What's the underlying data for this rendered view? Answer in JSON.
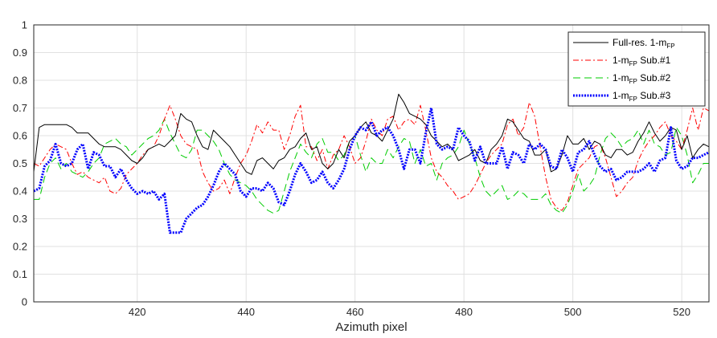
{
  "chart_data": {
    "type": "line",
    "title": "",
    "xlabel": "Azimuth pixel",
    "ylabel": "",
    "xlim": [
      401,
      525
    ],
    "ylim": [
      0,
      1
    ],
    "xticks": [
      420,
      440,
      460,
      480,
      500,
      520
    ],
    "yticks": [
      0,
      0.1,
      0.2,
      0.3,
      0.4,
      0.5,
      0.6,
      0.7,
      0.8,
      0.9,
      1
    ],
    "grid": true,
    "legend_position": "top-right",
    "series": [
      {
        "name": "Full-res. 1-m_FP",
        "legend_main": "Full-res. 1-m",
        "legend_sub": "FP",
        "legend_suffix": "",
        "color": "#000000",
        "style": "solid",
        "x": [
          401,
          402,
          403,
          404,
          405,
          406,
          407,
          408,
          409,
          410,
          411,
          412,
          413,
          414,
          415,
          416,
          417,
          418,
          419,
          420,
          421,
          422,
          423,
          424,
          425,
          426,
          427,
          428,
          429,
          430,
          431,
          432,
          433,
          434,
          435,
          436,
          437,
          438,
          439,
          440,
          441,
          442,
          443,
          444,
          445,
          446,
          447,
          448,
          449,
          450,
          451,
          452,
          453,
          454,
          455,
          456,
          457,
          458,
          459,
          460,
          461,
          462,
          463,
          464,
          465,
          466,
          467,
          468,
          469,
          470,
          471,
          472,
          473,
          474,
          475,
          476,
          477,
          478,
          479,
          480,
          481,
          482,
          483,
          484,
          485,
          486,
          487,
          488,
          489,
          490,
          491,
          492,
          493,
          494,
          495,
          496,
          497,
          498,
          499,
          500,
          501,
          502,
          503,
          504,
          505,
          506,
          507,
          508,
          509,
          510,
          511,
          512,
          513,
          514,
          515,
          516,
          517,
          518,
          519,
          520,
          521,
          522,
          523,
          524,
          525
        ],
        "y": [
          0.47,
          0.63,
          0.64,
          0.64,
          0.64,
          0.64,
          0.64,
          0.63,
          0.61,
          0.61,
          0.61,
          0.59,
          0.57,
          0.56,
          0.56,
          0.56,
          0.55,
          0.53,
          0.51,
          0.5,
          0.52,
          0.55,
          0.56,
          0.57,
          0.56,
          0.58,
          0.6,
          0.68,
          0.66,
          0.65,
          0.6,
          0.56,
          0.55,
          0.62,
          0.6,
          0.58,
          0.56,
          0.53,
          0.5,
          0.47,
          0.46,
          0.51,
          0.52,
          0.5,
          0.48,
          0.51,
          0.52,
          0.55,
          0.56,
          0.59,
          0.61,
          0.55,
          0.56,
          0.5,
          0.48,
          0.5,
          0.55,
          0.52,
          0.58,
          0.6,
          0.63,
          0.65,
          0.61,
          0.6,
          0.58,
          0.62,
          0.66,
          0.75,
          0.72,
          0.68,
          0.67,
          0.66,
          0.64,
          0.6,
          0.58,
          0.56,
          0.57,
          0.55,
          0.51,
          0.52,
          0.53,
          0.55,
          0.51,
          0.5,
          0.55,
          0.57,
          0.6,
          0.66,
          0.65,
          0.62,
          0.59,
          0.58,
          0.53,
          0.53,
          0.55,
          0.47,
          0.48,
          0.53,
          0.6,
          0.57,
          0.57,
          0.59,
          0.55,
          0.58,
          0.57,
          0.53,
          0.52,
          0.55,
          0.55,
          0.53,
          0.54,
          0.58,
          0.61,
          0.65,
          0.61,
          0.58,
          0.6,
          0.63,
          0.62,
          0.55,
          0.6,
          0.52,
          0.55,
          0.57,
          0.56
        ]
      },
      {
        "name": "1-m_FP Sub.#1",
        "legend_main": "1-m",
        "legend_sub": "FP",
        "legend_suffix": " Sub.#1",
        "color": "#ff0000",
        "style": "dashdot",
        "x": [
          401,
          402,
          403,
          404,
          405,
          406,
          407,
          408,
          409,
          410,
          411,
          412,
          413,
          414,
          415,
          416,
          417,
          418,
          419,
          420,
          421,
          422,
          423,
          424,
          425,
          426,
          427,
          428,
          429,
          430,
          431,
          432,
          433,
          434,
          435,
          436,
          437,
          438,
          439,
          440,
          441,
          442,
          443,
          444,
          445,
          446,
          447,
          448,
          449,
          450,
          451,
          452,
          453,
          454,
          455,
          456,
          457,
          458,
          459,
          460,
          461,
          462,
          463,
          464,
          465,
          466,
          467,
          468,
          469,
          470,
          471,
          472,
          473,
          474,
          475,
          476,
          477,
          478,
          479,
          480,
          481,
          482,
          483,
          484,
          485,
          486,
          487,
          488,
          489,
          490,
          491,
          492,
          493,
          494,
          495,
          496,
          497,
          498,
          499,
          500,
          501,
          502,
          503,
          504,
          505,
          506,
          507,
          508,
          509,
          510,
          511,
          512,
          513,
          514,
          515,
          516,
          517,
          518,
          519,
          520,
          521,
          522,
          523,
          524,
          525
        ],
        "y": [
          0.5,
          0.49,
          0.52,
          0.55,
          0.57,
          0.56,
          0.55,
          0.5,
          0.46,
          0.47,
          0.45,
          0.44,
          0.43,
          0.45,
          0.4,
          0.39,
          0.41,
          0.46,
          0.48,
          0.5,
          0.53,
          0.55,
          0.56,
          0.6,
          0.66,
          0.71,
          0.66,
          0.6,
          0.57,
          0.56,
          0.55,
          0.47,
          0.43,
          0.4,
          0.41,
          0.44,
          0.39,
          0.45,
          0.5,
          0.53,
          0.58,
          0.64,
          0.61,
          0.65,
          0.62,
          0.62,
          0.55,
          0.6,
          0.67,
          0.71,
          0.56,
          0.56,
          0.51,
          0.55,
          0.48,
          0.53,
          0.55,
          0.6,
          0.56,
          0.5,
          0.52,
          0.58,
          0.66,
          0.62,
          0.6,
          0.66,
          0.67,
          0.62,
          0.65,
          0.66,
          0.64,
          0.71,
          0.62,
          0.52,
          0.47,
          0.45,
          0.42,
          0.4,
          0.37,
          0.38,
          0.39,
          0.42,
          0.46,
          0.5,
          0.53,
          0.55,
          0.57,
          0.64,
          0.66,
          0.6,
          0.63,
          0.72,
          0.67,
          0.56,
          0.45,
          0.37,
          0.34,
          0.33,
          0.36,
          0.42,
          0.48,
          0.5,
          0.52,
          0.56,
          0.57,
          0.52,
          0.45,
          0.38,
          0.4,
          0.43,
          0.45,
          0.51,
          0.55,
          0.58,
          0.6,
          0.63,
          0.65,
          0.6,
          0.58,
          0.55,
          0.62,
          0.7,
          0.62,
          0.7,
          0.69
        ]
      },
      {
        "name": "1-m_FP Sub.#2",
        "legend_main": "1-m",
        "legend_sub": "FP",
        "legend_suffix": " Sub.#2",
        "color": "#00cc00",
        "style": "dashed",
        "x": [
          401,
          402,
          403,
          404,
          405,
          406,
          407,
          408,
          409,
          410,
          411,
          412,
          413,
          414,
          415,
          416,
          417,
          418,
          419,
          420,
          421,
          422,
          423,
          424,
          425,
          426,
          427,
          428,
          429,
          430,
          431,
          432,
          433,
          434,
          435,
          436,
          437,
          438,
          439,
          440,
          441,
          442,
          443,
          444,
          445,
          446,
          447,
          448,
          449,
          450,
          451,
          452,
          453,
          454,
          455,
          456,
          457,
          458,
          459,
          460,
          461,
          462,
          463,
          464,
          465,
          466,
          467,
          468,
          469,
          470,
          471,
          472,
          473,
          474,
          475,
          476,
          477,
          478,
          479,
          480,
          481,
          482,
          483,
          484,
          485,
          486,
          487,
          488,
          489,
          490,
          491,
          492,
          493,
          494,
          495,
          496,
          497,
          498,
          499,
          500,
          501,
          502,
          503,
          504,
          505,
          506,
          507,
          508,
          509,
          510,
          511,
          512,
          513,
          514,
          515,
          516,
          517,
          518,
          519,
          520,
          521,
          522,
          523,
          524,
          525
        ],
        "y": [
          0.37,
          0.37,
          0.45,
          0.5,
          0.52,
          0.48,
          0.5,
          0.47,
          0.46,
          0.45,
          0.47,
          0.5,
          0.52,
          0.57,
          0.58,
          0.59,
          0.57,
          0.56,
          0.53,
          0.55,
          0.57,
          0.59,
          0.6,
          0.62,
          0.66,
          0.61,
          0.57,
          0.53,
          0.52,
          0.55,
          0.62,
          0.62,
          0.6,
          0.58,
          0.55,
          0.5,
          0.46,
          0.44,
          0.43,
          0.42,
          0.4,
          0.37,
          0.35,
          0.33,
          0.32,
          0.33,
          0.4,
          0.47,
          0.52,
          0.57,
          0.54,
          0.52,
          0.57,
          0.59,
          0.54,
          0.54,
          0.51,
          0.53,
          0.58,
          0.6,
          0.53,
          0.47,
          0.52,
          0.5,
          0.5,
          0.55,
          0.52,
          0.56,
          0.59,
          0.58,
          0.5,
          0.55,
          0.49,
          0.5,
          0.44,
          0.5,
          0.52,
          0.53,
          0.56,
          0.62,
          0.57,
          0.52,
          0.45,
          0.4,
          0.38,
          0.4,
          0.42,
          0.37,
          0.38,
          0.4,
          0.39,
          0.37,
          0.37,
          0.37,
          0.39,
          0.35,
          0.33,
          0.32,
          0.35,
          0.4,
          0.46,
          0.4,
          0.42,
          0.45,
          0.53,
          0.59,
          0.61,
          0.59,
          0.56,
          0.58,
          0.59,
          0.62,
          0.57,
          0.62,
          0.57,
          0.56,
          0.53,
          0.54,
          0.63,
          0.6,
          0.53,
          0.43,
          0.46,
          0.5,
          0.5
        ]
      },
      {
        "name": "1-m_FP Sub.#3",
        "legend_main": "1-m",
        "legend_sub": "FP",
        "legend_suffix": " Sub.#3",
        "color": "#0000ff",
        "style": "dotted",
        "x": [
          401,
          402,
          403,
          404,
          405,
          406,
          407,
          408,
          409,
          410,
          411,
          412,
          413,
          414,
          415,
          416,
          417,
          418,
          419,
          420,
          421,
          422,
          423,
          424,
          425,
          426,
          427,
          428,
          429,
          430,
          431,
          432,
          433,
          434,
          435,
          436,
          437,
          438,
          439,
          440,
          441,
          442,
          443,
          444,
          445,
          446,
          447,
          448,
          449,
          450,
          451,
          452,
          453,
          454,
          455,
          456,
          457,
          458,
          459,
          460,
          461,
          462,
          463,
          464,
          465,
          466,
          467,
          468,
          469,
          470,
          471,
          472,
          473,
          474,
          475,
          476,
          477,
          478,
          479,
          480,
          481,
          482,
          483,
          484,
          485,
          486,
          487,
          488,
          489,
          490,
          491,
          492,
          493,
          494,
          495,
          496,
          497,
          498,
          499,
          500,
          501,
          502,
          503,
          504,
          505,
          506,
          507,
          508,
          509,
          510,
          511,
          512,
          513,
          514,
          515,
          516,
          517,
          518,
          519,
          520,
          521,
          522,
          523,
          524,
          525
        ],
        "y": [
          0.4,
          0.41,
          0.49,
          0.51,
          0.57,
          0.5,
          0.49,
          0.5,
          0.55,
          0.57,
          0.48,
          0.54,
          0.53,
          0.49,
          0.49,
          0.45,
          0.48,
          0.44,
          0.41,
          0.39,
          0.4,
          0.39,
          0.4,
          0.37,
          0.39,
          0.25,
          0.25,
          0.25,
          0.3,
          0.32,
          0.34,
          0.35,
          0.38,
          0.42,
          0.47,
          0.5,
          0.48,
          0.46,
          0.4,
          0.38,
          0.41,
          0.41,
          0.4,
          0.43,
          0.41,
          0.36,
          0.35,
          0.4,
          0.46,
          0.5,
          0.47,
          0.43,
          0.44,
          0.47,
          0.43,
          0.41,
          0.44,
          0.48,
          0.55,
          0.6,
          0.63,
          0.62,
          0.65,
          0.6,
          0.62,
          0.63,
          0.6,
          0.55,
          0.48,
          0.55,
          0.55,
          0.5,
          0.61,
          0.7,
          0.57,
          0.55,
          0.56,
          0.55,
          0.63,
          0.6,
          0.58,
          0.51,
          0.56,
          0.5,
          0.5,
          0.5,
          0.56,
          0.48,
          0.54,
          0.53,
          0.5,
          0.57,
          0.55,
          0.57,
          0.55,
          0.49,
          0.48,
          0.55,
          0.52,
          0.47,
          0.54,
          0.55,
          0.58,
          0.53,
          0.49,
          0.47,
          0.48,
          0.44,
          0.45,
          0.47,
          0.47,
          0.47,
          0.48,
          0.5,
          0.47,
          0.51,
          0.52,
          0.63,
          0.51,
          0.48,
          0.49,
          0.52,
          0.52,
          0.53,
          0.54
        ]
      }
    ]
  }
}
